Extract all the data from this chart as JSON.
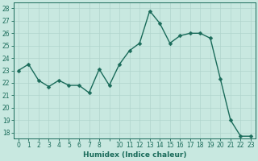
{
  "x": [
    0,
    1,
    2,
    3,
    4,
    5,
    6,
    7,
    8,
    9,
    10,
    11,
    12,
    13,
    14,
    15,
    16,
    17,
    18,
    19,
    20,
    21,
    22,
    23
  ],
  "y": [
    23.0,
    23.5,
    22.2,
    21.7,
    22.2,
    21.8,
    21.8,
    21.2,
    23.1,
    21.8,
    23.5,
    24.6,
    25.2,
    27.8,
    26.8,
    25.2,
    25.8,
    26.0,
    26.0,
    25.6,
    22.3,
    19.0,
    17.7,
    17.7
  ],
  "line_color": "#1a6b5a",
  "marker_color": "#1a6b5a",
  "bg_color": "#c8e8e0",
  "grid_color": "#b0d4cc",
  "xlabel": "Humidex (Indice chaleur)",
  "ylim": [
    17.5,
    28.5
  ],
  "yticks": [
    18,
    19,
    20,
    21,
    22,
    23,
    24,
    25,
    26,
    27,
    28
  ],
  "xtick_labels": [
    "0",
    "1",
    "2",
    "3",
    "4",
    "5",
    "6",
    "7",
    "8",
    "",
    "10",
    "11",
    "12",
    "13",
    "14",
    "15",
    "16",
    "17",
    "18",
    "19",
    "20",
    "21",
    "22",
    "23"
  ],
  "xlabel_fontsize": 6.5,
  "tick_fontsize": 5.5,
  "marker_size": 2.5,
  "line_width": 1.0
}
